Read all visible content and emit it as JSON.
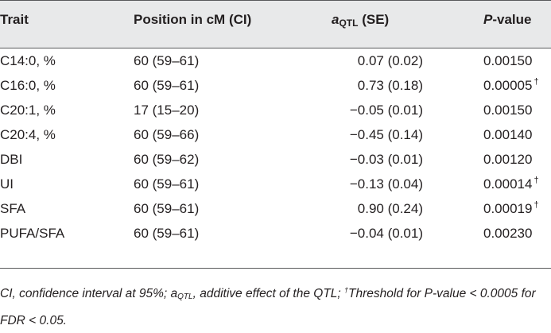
{
  "table": {
    "headers": {
      "trait": "Trait",
      "position": "Position in cM (CI)",
      "aqtl_symbol": "a",
      "aqtl_subscript": "QTL",
      "aqtl_rest": " (SE)",
      "pvalue_symbol": "P",
      "pvalue_rest": "-value"
    },
    "rows": [
      {
        "trait": "C14:0, %",
        "position": "60 (59–61)",
        "aqtl": "0.07 (0.02)",
        "pvalue": "0.00150",
        "dagger": ""
      },
      {
        "trait": "C16:0, %",
        "position": "60 (59–61)",
        "aqtl": "0.73 (0.18)",
        "pvalue": "0.00005",
        "dagger": "†"
      },
      {
        "trait": "C20:1, %",
        "position": "17 (15–20)",
        "aqtl": "−0.05 (0.01)",
        "pvalue": "0.00150",
        "dagger": ""
      },
      {
        "trait": "C20:4, %",
        "position": "60 (59–66)",
        "aqtl": "−0.45 (0.14)",
        "pvalue": "0.00140",
        "dagger": ""
      },
      {
        "trait": "DBI",
        "position": "60 (59–62)",
        "aqtl": "−0.03 (0.01)",
        "pvalue": "0.00120",
        "dagger": ""
      },
      {
        "trait": "UI",
        "position": "60 (59–61)",
        "aqtl": "−0.13 (0.04)",
        "pvalue": "0.00014",
        "dagger": "†"
      },
      {
        "trait": "SFA",
        "position": "60 (59–61)",
        "aqtl": "0.90 (0.24)",
        "pvalue": "0.00019",
        "dagger": "†"
      },
      {
        "trait": "PUFA/SFA",
        "position": "60 (59–61)",
        "aqtl": "−0.04 (0.01)",
        "pvalue": "0.00230",
        "dagger": ""
      }
    ]
  },
  "footnote": {
    "part1": "CI, confidence interval at 95%; a",
    "sub": "QTL",
    "part2": ", additive effect of the QTL; ",
    "sup": "†",
    "part3": "Threshold for P-value < 0.0005 for FDR < 0.05."
  },
  "colors": {
    "header_background": "#e8e9ea",
    "rule": "#58595b",
    "text": "#231f20"
  }
}
